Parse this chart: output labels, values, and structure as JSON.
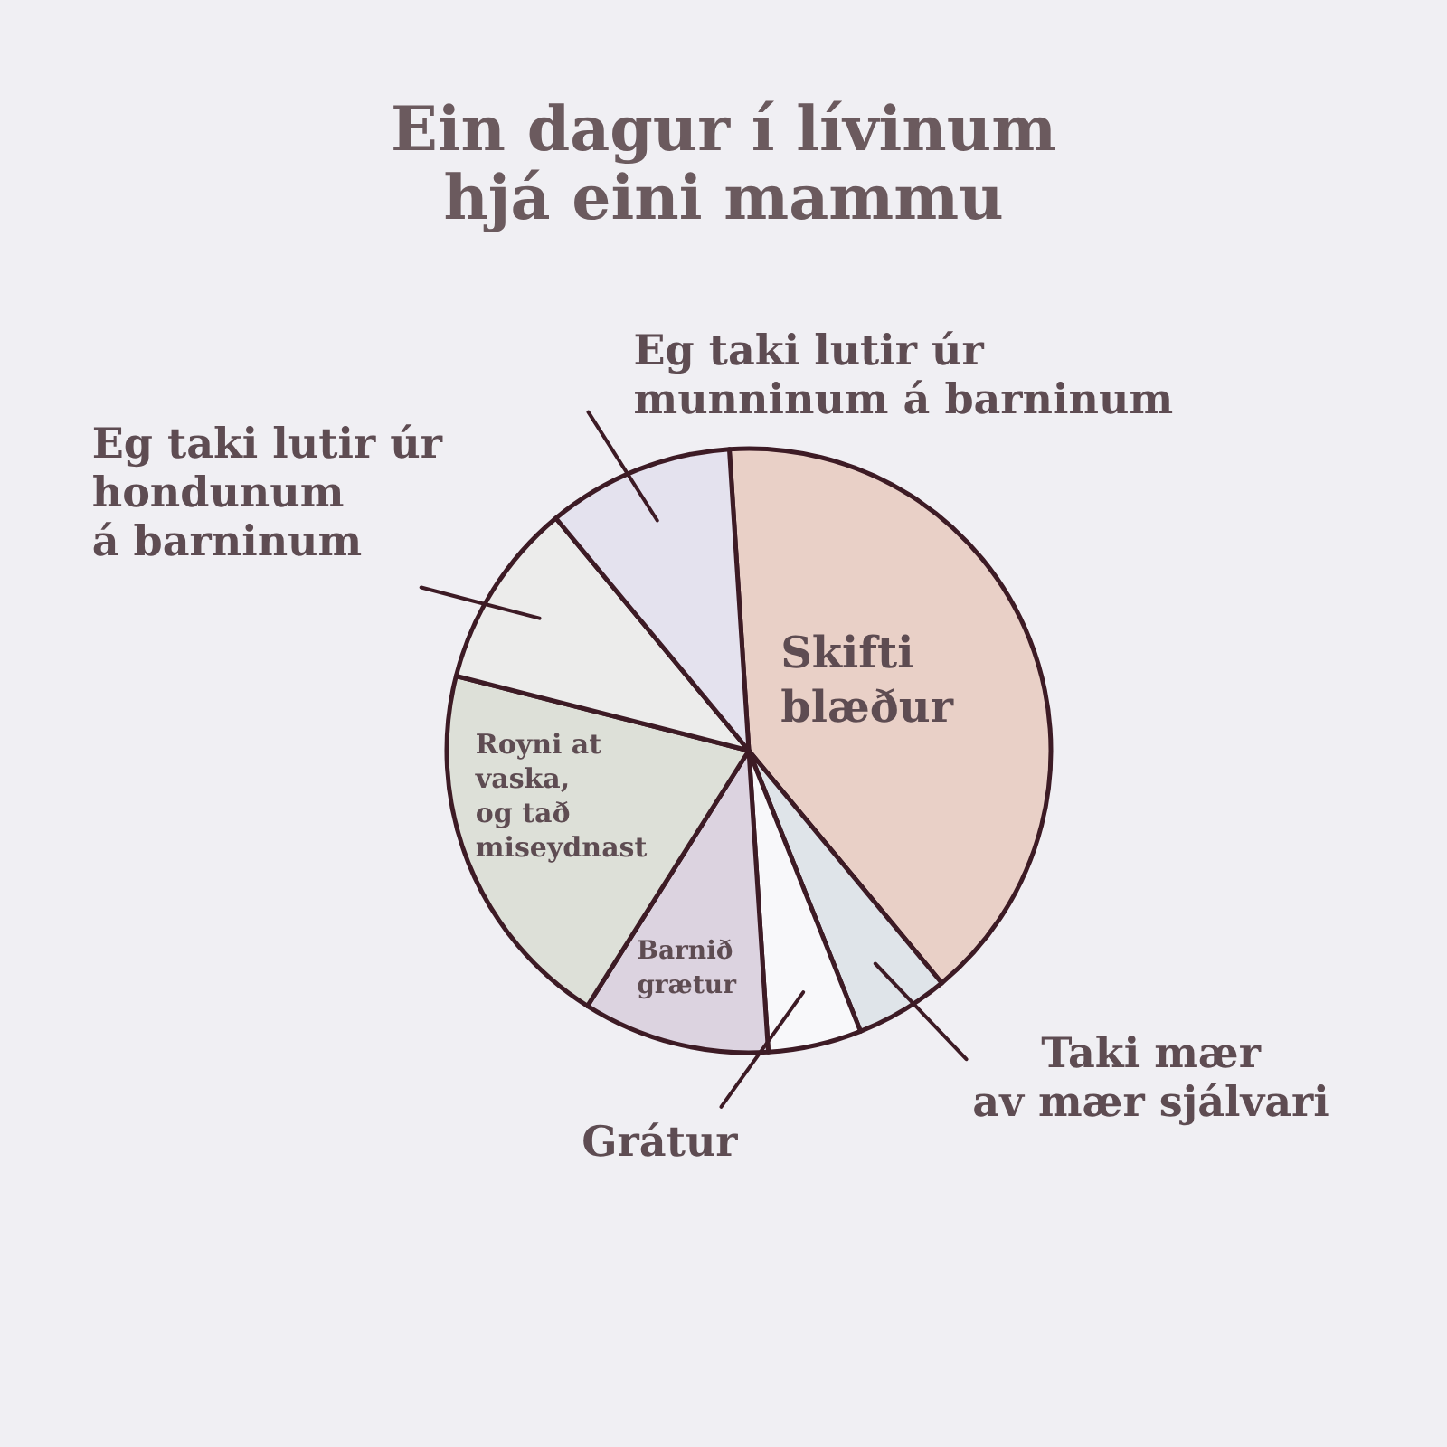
{
  "chart_data": {
    "type": "pie",
    "title": "Ein dagur í lívinum\nhjá eini mammu",
    "categories": [
      "Skifti\nblæður",
      "Taki mær\nav mær sjálvari",
      "Grátur",
      "Barnið\ngrætur",
      "Royni at\nvaska,\nog tað\nmiseydnast",
      "Eg taki lutir úr\nhondunum\ná barninum",
      "Eg taki lutir úr\nmunninum á barninum"
    ],
    "values": [
      40,
      5,
      5,
      10,
      20,
      10,
      10
    ],
    "colors": [
      "#e9d0c7",
      "#dfe4e9",
      "#f8f8fa",
      "#dcd3e0",
      "#dde0d8",
      "#ececeb",
      "#e4e2ee"
    ]
  }
}
